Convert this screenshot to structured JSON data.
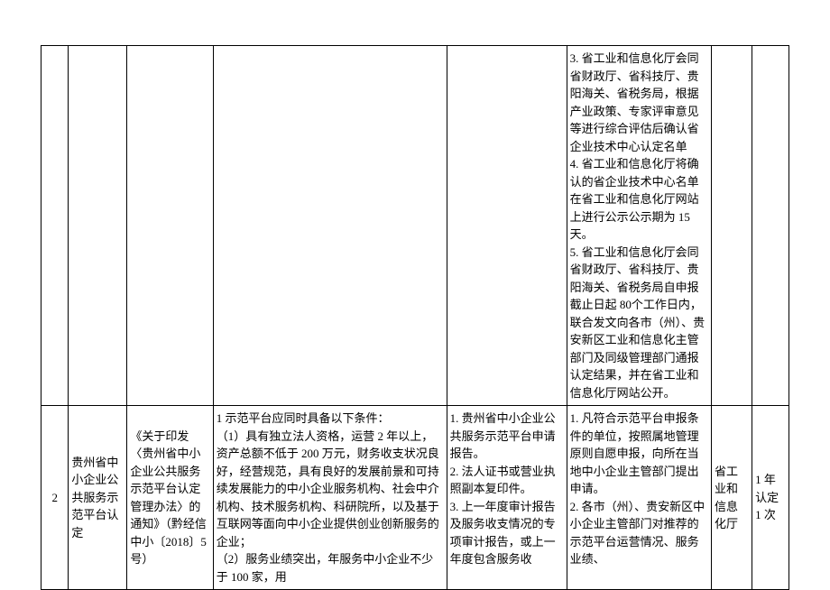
{
  "table": {
    "row1": {
      "num": "",
      "name": "",
      "basis": "",
      "cond": "",
      "apply": "",
      "proc": "3. 省工业和信息化厅会同省财政厅、省科技厅、贵阳海关、省税务局，根据产业政策、专家评审意见等进行综合评估后确认省企业技术中心认定名单\n4. 省工业和信息化厅将确认的省企业技术中心名单在省工业和信息化厅网站上进行公示公示期为 15 天。\n5. 省工业和信息化厅会同省财政厅、省科技厅、贵阳海关、省税务局自申报截止日起 80个工作日内，联合发文向各市（州）、贵安新区工业和信息化主管部门及同级管理部门通报认定结果，并在省工业和信息化厅网站公开。",
      "dept": "",
      "freq": ""
    },
    "row2": {
      "num": "2",
      "name": "贵州省中小企业公共服务示范平台认定",
      "basis": "《关于印发〈贵州省中小企业公共服务示范平台认定管理办法〉的通知》（黔经信中小〔2018〕5 号）",
      "cond": "1 示范平台应同时具备以下条件：\n（1）具有独立法人资格，运营 2 年以上，资产总额不低于 200 万元，财务收支状况良好，经营规范，具有良好的发展前景和可持续发展能力的中小企业服务机构、社会中介机构、技术服务机构、科研院所，以及基于互联网等面向中小企业提供创业创新服务的企业；\n（2）服务业绩突出，年服务中小企业不少于 100 家，用",
      "apply": "1. 贵州省中小企业公共服务示范平台申请报告。\n2. 法人证书或营业执照副本复印件。\n3. 上一年度审计报告及服务收支情况的专项审计报告，或上一年度包含服务收",
      "proc": "1. 凡符合示范平台申报条件的单位，按照属地管理原则自愿申报，向所在当地中小企业主管部门提出申请。\n2. 各市（州）、贵安新区中小企业主管部门对推荐的示范平台运营情况、服务业绩、",
      "dept": "省工业和信息化厅",
      "freq": "1 年认定 1 次"
    }
  }
}
